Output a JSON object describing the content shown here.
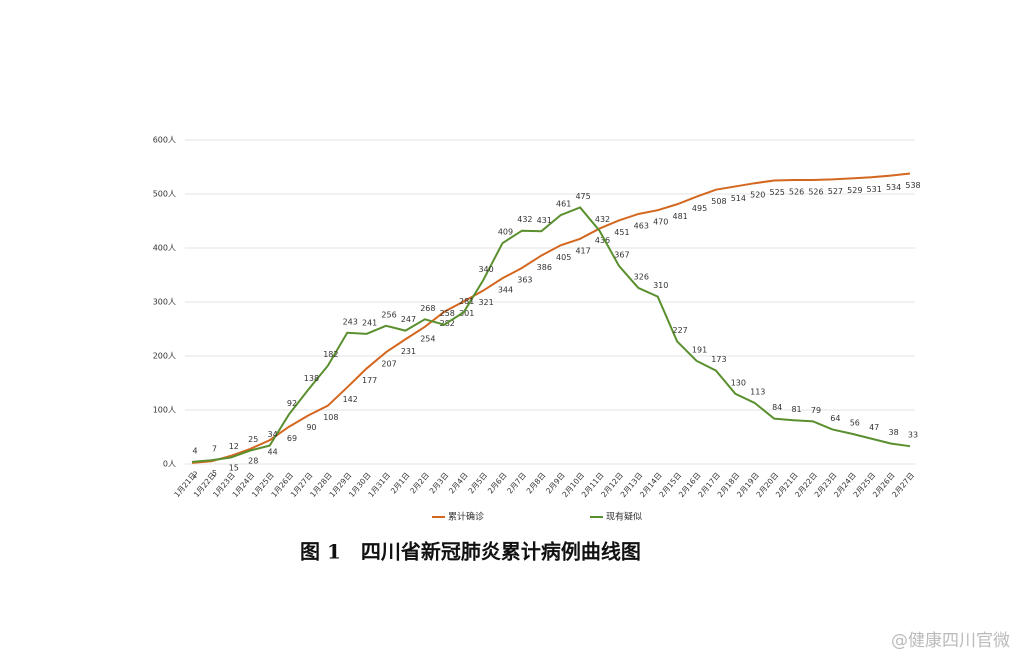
{
  "chart_data": {
    "type": "line",
    "categories": [
      "1月21日",
      "1月22日",
      "1月23日",
      "1月24日",
      "1月25日",
      "1月26日",
      "1月27日",
      "1月28日",
      "1月29日",
      "1月30日",
      "1月31日",
      "2月1日",
      "2月2日",
      "2月3日",
      "2月4日",
      "2月5日",
      "2月6日",
      "2月7日",
      "2月8日",
      "2月9日",
      "2月10日",
      "2月11日",
      "2月12日",
      "2月13日",
      "2月14日",
      "2月15日",
      "2月16日",
      "2月17日",
      "2月18日",
      "2月19日",
      "2月20日",
      "2月21日",
      "2月22日",
      "2月23日",
      "2月24日",
      "2月25日",
      "2月26日",
      "2月27日"
    ],
    "series": [
      {
        "name": "累计确诊",
        "color": "#d4671f",
        "values": [
          2,
          5,
          15,
          28,
          44,
          69,
          90,
          108,
          142,
          177,
          207,
          231,
          254,
          282,
          301,
          321,
          344,
          363,
          386,
          405,
          417,
          436,
          451,
          463,
          470,
          481,
          495,
          508,
          514,
          520,
          525,
          526,
          526,
          527,
          529,
          531,
          534,
          538
        ]
      },
      {
        "name": "现有疑似",
        "color": "#5a8f2e",
        "values": [
          4,
          7,
          12,
          25,
          34,
          92,
          138,
          182,
          243,
          241,
          256,
          247,
          268,
          258,
          281,
          340,
          409,
          432,
          431,
          461,
          475,
          432,
          367,
          326,
          310,
          227,
          191,
          173,
          130,
          113,
          84,
          81,
          79,
          64,
          56,
          47,
          38,
          33
        ]
      }
    ],
    "ylim": [
      0,
      600
    ],
    "yticks": [
      {
        "value": 0,
        "label": "0人"
      },
      {
        "value": 100,
        "label": "100人"
      },
      {
        "value": 200,
        "label": "200人"
      },
      {
        "value": 300,
        "label": "300人"
      },
      {
        "value": 400,
        "label": "400人"
      },
      {
        "value": 500,
        "label": "500人"
      },
      {
        "value": 600,
        "label": "600人"
      }
    ],
    "grid": true,
    "caption": "图 1　四川省新冠肺炎累计病例曲线图",
    "watermark": "@健康四川官微"
  }
}
